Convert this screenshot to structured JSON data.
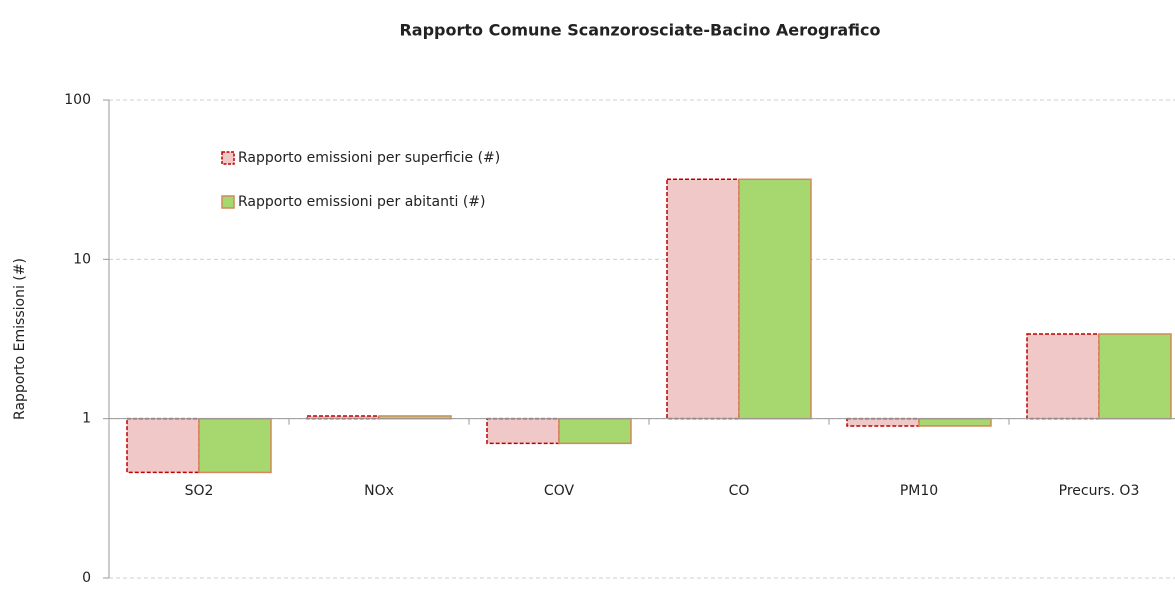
{
  "chart_data": {
    "type": "bar",
    "title": "Rapporto Comune Scanzorosciate-Bacino Aerografico",
    "y_label": "Rapporto Emissioni (#)",
    "categories": [
      "SO2",
      "NOx",
      "COV",
      "CO",
      "PM10",
      "Precurs. O3"
    ],
    "series": [
      {
        "name": "Rapporto emissioni per superficie (#)",
        "color": "#f0c8c8",
        "values": [
          0.46,
          1.04,
          0.7,
          31.8,
          0.9,
          3.4
        ]
      },
      {
        "name": "Rapporto emissioni per abitanti (#)",
        "color": "#a6d86f",
        "values": [
          0.46,
          1.04,
          0.7,
          31.8,
          0.9,
          3.4
        ]
      }
    ],
    "ylim": [
      0.1,
      100
    ],
    "yticks": [
      {
        "value": 0.1,
        "label": "0"
      },
      1,
      10,
      100
    ],
    "log_scale": true,
    "grid": true,
    "legend": "upper left"
  }
}
